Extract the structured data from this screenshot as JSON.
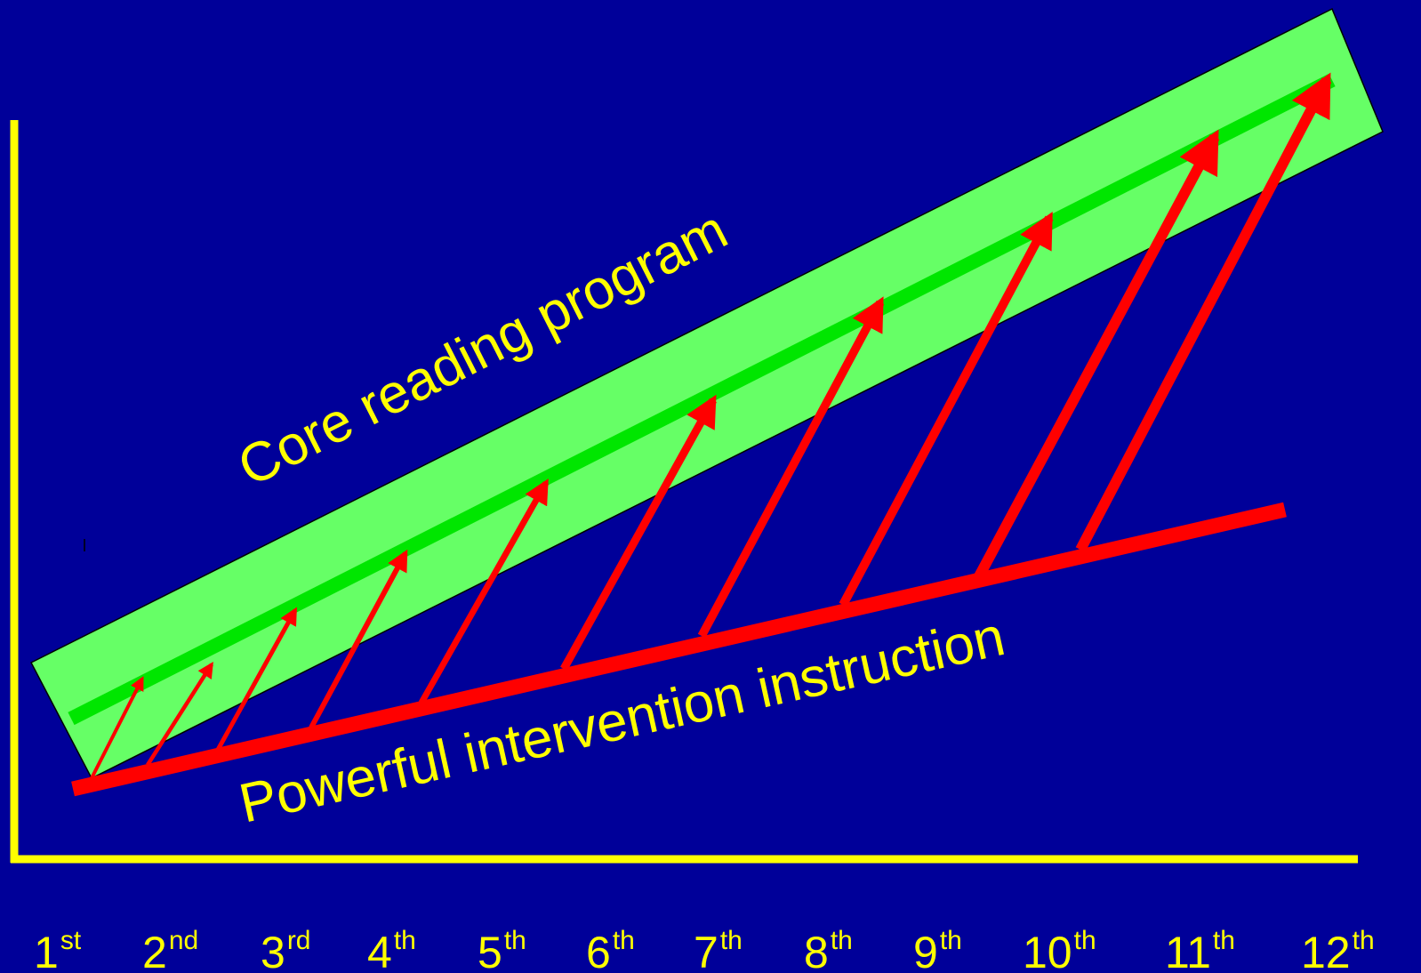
{
  "colors": {
    "background": "#000099",
    "axis": "#ffff00",
    "band_fill": "#66ff66",
    "band_line": "#00e600",
    "arrow": "#ff0000",
    "text": "#ffff00"
  },
  "labels": {
    "core": "Core reading program",
    "intervention": "Powerful intervention instruction"
  },
  "grades": [
    {
      "num": "1",
      "suf": "st"
    },
    {
      "num": "2",
      "suf": "nd"
    },
    {
      "num": "3",
      "suf": "rd"
    },
    {
      "num": "4",
      "suf": "th"
    },
    {
      "num": "5",
      "suf": "th"
    },
    {
      "num": "6",
      "suf": "th"
    },
    {
      "num": "7",
      "suf": "th"
    },
    {
      "num": "8",
      "suf": "th"
    },
    {
      "num": "9",
      "suf": "th"
    },
    {
      "num": "10",
      "suf": "th"
    },
    {
      "num": "11",
      "suf": "th"
    },
    {
      "num": "12",
      "suf": "th"
    }
  ]
}
